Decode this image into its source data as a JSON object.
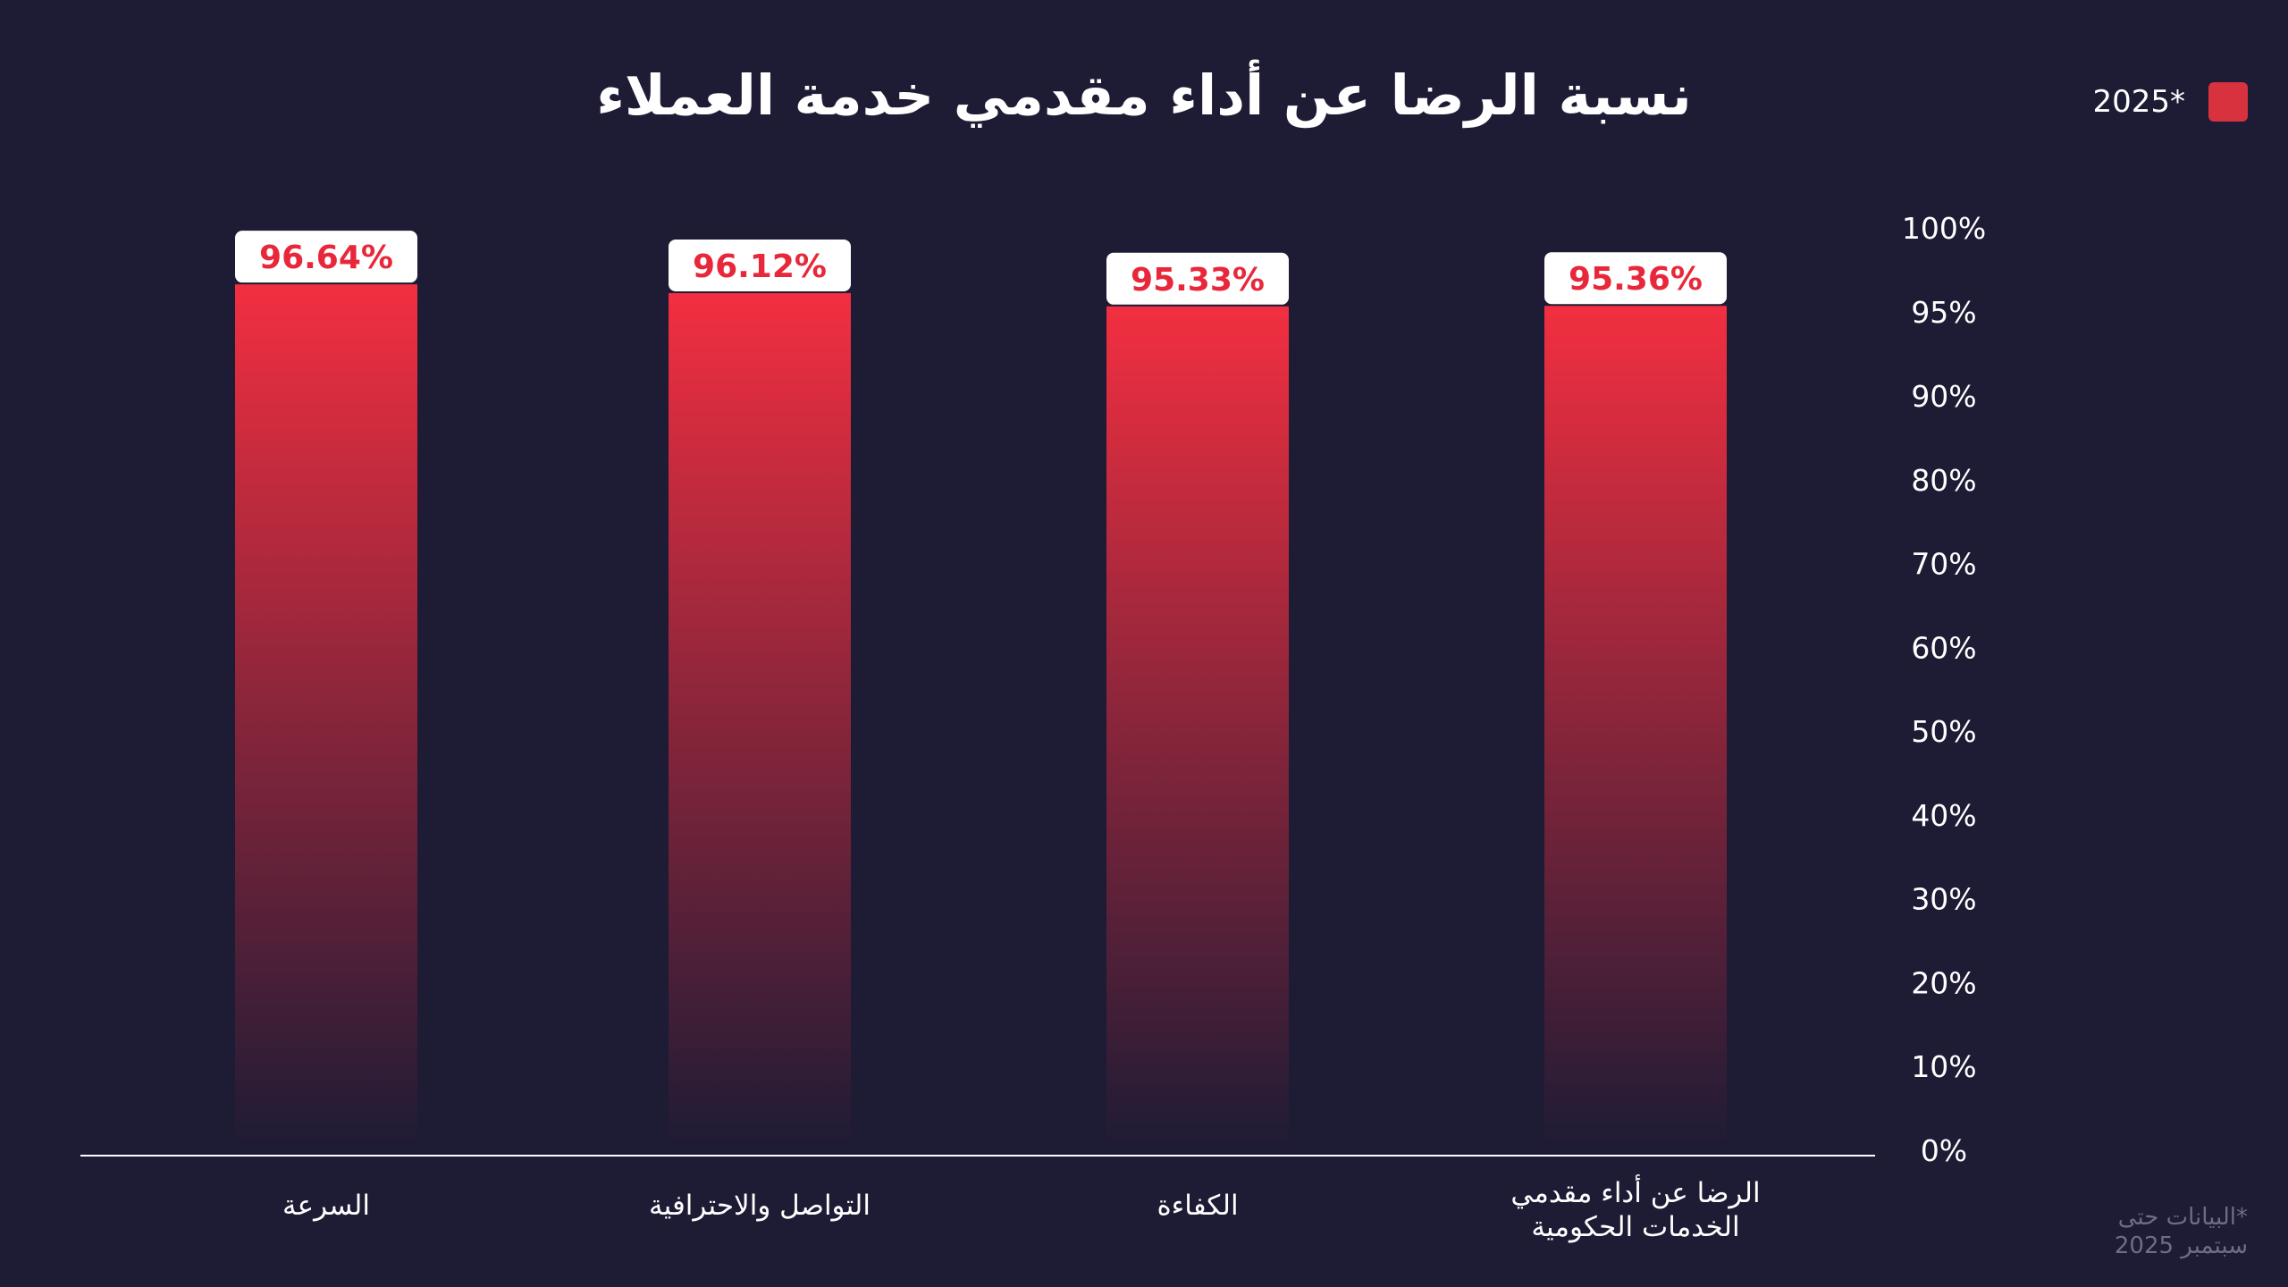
{
  "legend": {
    "label": "2025*",
    "color": "#d8323f"
  },
  "footnote": {
    "line1": "*البيانات حتى",
    "line2": "سبتمبر 2025"
  },
  "colors": {
    "background": "#1e1b35",
    "bar_top": "#f22f40",
    "bar_bottom": "#1e1b35",
    "value_label_text": "#e8283a",
    "value_label_bg": "#ffffff",
    "axis_line": "#ffffff"
  },
  "chart_data": {
    "type": "bar",
    "title": "نسبة الرضا عن أداء مقدمي خدمة العملاء",
    "categories": [
      [
        "السرعة"
      ],
      [
        "التواصل والاحترافية"
      ],
      [
        "الكفاءة"
      ],
      [
        "الرضا عن أداء مقدمي",
        "الخدمات الحكومية"
      ]
    ],
    "series": [
      {
        "name": "2025*",
        "values": [
          96.64,
          96.12,
          95.33,
          95.36
        ],
        "labels": [
          "96.64%",
          "96.12%",
          "95.33%",
          "95.36%"
        ]
      }
    ],
    "y_ticks": [
      {
        "value": 0,
        "label": "0%"
      },
      {
        "value": 10,
        "label": "10%"
      },
      {
        "value": 20,
        "label": "20%"
      },
      {
        "value": 30,
        "label": "30%"
      },
      {
        "value": 40,
        "label": "40%"
      },
      {
        "value": 50,
        "label": "50%"
      },
      {
        "value": 60,
        "label": "60%"
      },
      {
        "value": 70,
        "label": "70%"
      },
      {
        "value": 80,
        "label": "80%"
      },
      {
        "value": 90,
        "label": "90%"
      },
      {
        "value": 95,
        "label": "95%"
      },
      {
        "value": 100,
        "label": "100%"
      }
    ],
    "ylim": [
      0,
      100
    ],
    "axis_position": "right",
    "legend_position": "top-right",
    "grid": false
  }
}
